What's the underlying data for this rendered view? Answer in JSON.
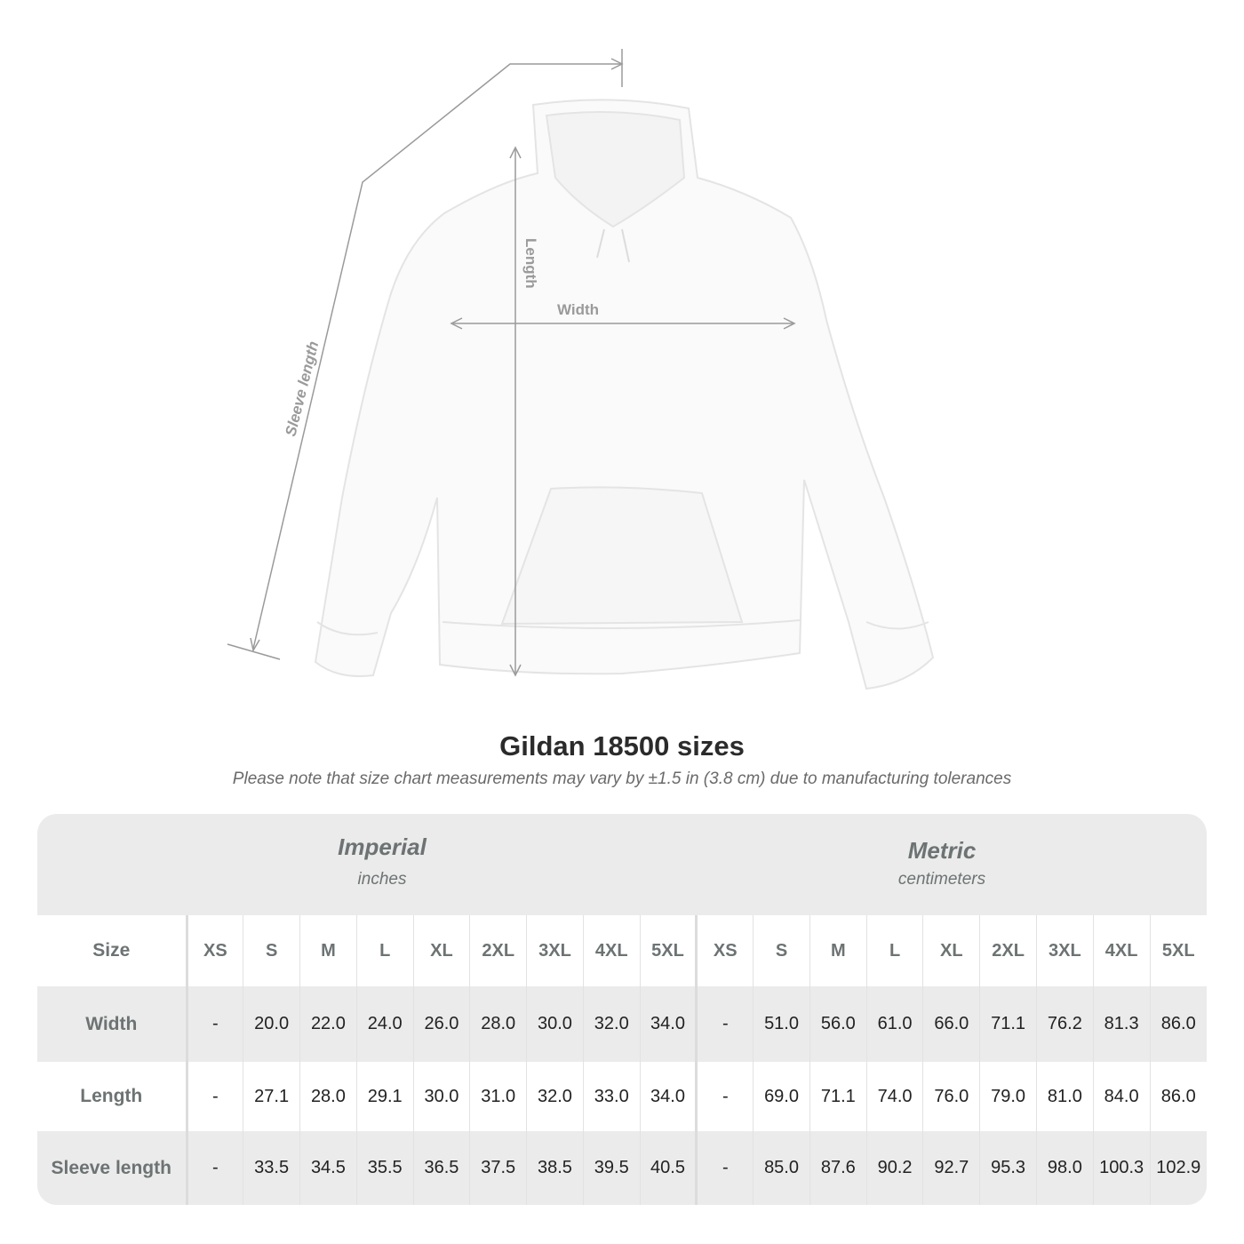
{
  "diagram": {
    "labels": {
      "length": "Length",
      "width": "Width",
      "sleeve": "Sleeve length"
    },
    "garment_color": "#fafafa",
    "line_color": "#9a9a9a"
  },
  "title": "Gildan 18500 sizes",
  "note": "Please note that size chart measurements may vary by ±1.5 in (3.8 cm) due to manufacturing tolerances",
  "table": {
    "imperial": {
      "name": "Imperial",
      "unit": "inches"
    },
    "metric": {
      "name": "Metric",
      "unit": "centimeters"
    },
    "size_label": "Size",
    "sizes": [
      "XS",
      "S",
      "M",
      "L",
      "XL",
      "2XL",
      "3XL",
      "4XL",
      "5XL"
    ],
    "rows": [
      {
        "label": "Width",
        "imperial": [
          "-",
          "20.0",
          "22.0",
          "24.0",
          "26.0",
          "28.0",
          "30.0",
          "32.0",
          "34.0"
        ],
        "metric": [
          "-",
          "51.0",
          "56.0",
          "61.0",
          "66.0",
          "71.1",
          "76.2",
          "81.3",
          "86.0"
        ]
      },
      {
        "label": "Length",
        "imperial": [
          "-",
          "27.1",
          "28.0",
          "29.1",
          "30.0",
          "31.0",
          "32.0",
          "33.0",
          "34.0"
        ],
        "metric": [
          "-",
          "69.0",
          "71.1",
          "74.0",
          "76.0",
          "79.0",
          "81.0",
          "84.0",
          "86.0"
        ]
      },
      {
        "label": "Sleeve length",
        "imperial": [
          "-",
          "33.5",
          "34.5",
          "35.5",
          "36.5",
          "37.5",
          "38.5",
          "39.5",
          "40.5"
        ],
        "metric": [
          "-",
          "85.0",
          "87.6",
          "90.2",
          "92.7",
          "95.3",
          "98.0",
          "100.3",
          "102.9"
        ]
      }
    ]
  }
}
